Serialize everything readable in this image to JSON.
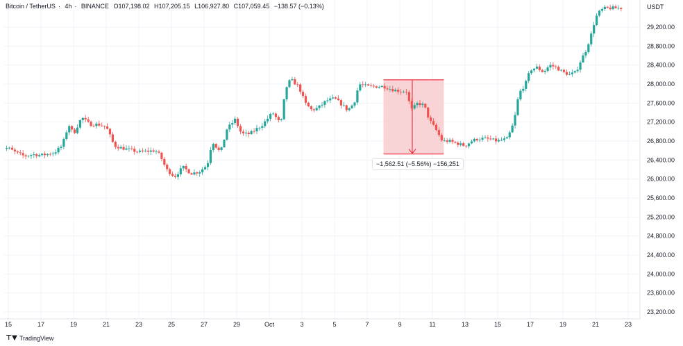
{
  "header": {
    "symbol": "Bitcoin / TetherUS",
    "interval": "4h",
    "exchange": "BINANCE",
    "open": "O107,198.02",
    "high": "H107,205.15",
    "low": "L106,927.80",
    "close": "C107,059.45",
    "change": "−138.57 (−0.13%)"
  },
  "unit_label": "USDT",
  "brand_label": "TradingView",
  "measure_label": "−1,562.51 (−5.56%) −156,251",
  "colors": {
    "up": "#26a69a",
    "down": "#ef5350",
    "grid": "#f0f3fa",
    "axis_text": "#131722",
    "measure_fill": "#f7c5c8",
    "measure_line": "#f23645"
  },
  "chart_data": {
    "type": "candlestick",
    "title": "Bitcoin / TetherUS · 4h · BINANCE",
    "ylabel": "USDT",
    "ylim": [
      23000,
      29600
    ],
    "xlim": [
      15,
      53
    ],
    "y_ticks": [
      "29,200.00",
      "28,800.00",
      "28,400.00",
      "28,000.00",
      "27,600.00",
      "27,200.00",
      "26,800.00",
      "26,400.00",
      "26,000.00",
      "25,600.00",
      "25,200.00",
      "24,800.00",
      "24,400.00",
      "24,000.00",
      "23,600.00",
      "23,200.00"
    ],
    "x_ticks": [
      {
        "label": "15",
        "x": 15
      },
      {
        "label": "17",
        "x": 17
      },
      {
        "label": "19",
        "x": 19
      },
      {
        "label": "21",
        "x": 21
      },
      {
        "label": "23",
        "x": 23
      },
      {
        "label": "25",
        "x": 25
      },
      {
        "label": "27",
        "x": 27
      },
      {
        "label": "29",
        "x": 29
      },
      {
        "label": "Oct",
        "x": 31
      },
      {
        "label": "3",
        "x": 33
      },
      {
        "label": "5",
        "x": 35
      },
      {
        "label": "7",
        "x": 37
      },
      {
        "label": "9",
        "x": 39
      },
      {
        "label": "11",
        "x": 41
      },
      {
        "label": "13",
        "x": 43
      },
      {
        "label": "15",
        "x": 45
      },
      {
        "label": "17",
        "x": 47
      },
      {
        "label": "19",
        "x": 49
      },
      {
        "label": "21",
        "x": 51
      },
      {
        "label": "23",
        "x": 53
      }
    ],
    "price_anchors": [
      [
        15.0,
        26650
      ],
      [
        15.5,
        26550
      ],
      [
        16.0,
        26480
      ],
      [
        16.5,
        26520
      ],
      [
        17.0,
        26500
      ],
      [
        17.8,
        26550
      ],
      [
        18.3,
        26700
      ],
      [
        18.7,
        27150
      ],
      [
        19.0,
        26950
      ],
      [
        19.5,
        27300
      ],
      [
        20.0,
        27150
      ],
      [
        20.5,
        27150
      ],
      [
        21.0,
        27100
      ],
      [
        21.5,
        26700
      ],
      [
        22.0,
        26650
      ],
      [
        23.0,
        26570
      ],
      [
        24.0,
        26600
      ],
      [
        24.3,
        26500
      ],
      [
        24.7,
        26200
      ],
      [
        25.2,
        26050
      ],
      [
        25.7,
        26250
      ],
      [
        26.2,
        26120
      ],
      [
        26.7,
        26150
      ],
      [
        27.2,
        26300
      ],
      [
        27.5,
        26800
      ],
      [
        28.0,
        26550
      ],
      [
        28.4,
        27050
      ],
      [
        28.9,
        27250
      ],
      [
        29.3,
        26950
      ],
      [
        29.8,
        26950
      ],
      [
        30.2,
        27050
      ],
      [
        30.6,
        27150
      ],
      [
        31.2,
        27400
      ],
      [
        31.7,
        27150
      ],
      [
        32.0,
        27900
      ],
      [
        32.3,
        28100
      ],
      [
        32.8,
        27950
      ],
      [
        33.2,
        27600
      ],
      [
        33.6,
        27450
      ],
      [
        34.0,
        27500
      ],
      [
        34.5,
        27650
      ],
      [
        35.0,
        27700
      ],
      [
        35.5,
        27550
      ],
      [
        35.8,
        27450
      ],
      [
        36.2,
        27600
      ],
      [
        36.5,
        28000
      ],
      [
        37.0,
        27950
      ],
      [
        37.5,
        27950
      ],
      [
        38.0,
        27950
      ],
      [
        38.6,
        27880
      ],
      [
        39.0,
        27850
      ],
      [
        39.4,
        27850
      ],
      [
        39.7,
        27450
      ],
      [
        40.1,
        27600
      ],
      [
        40.5,
        27550
      ],
      [
        40.8,
        27250
      ],
      [
        41.2,
        27050
      ],
      [
        41.6,
        26800
      ],
      [
        42.0,
        26800
      ],
      [
        42.5,
        26750
      ],
      [
        43.0,
        26700
      ],
      [
        43.4,
        26800
      ],
      [
        43.8,
        26850
      ],
      [
        44.3,
        26850
      ],
      [
        45.0,
        26800
      ],
      [
        45.6,
        26850
      ],
      [
        46.0,
        27200
      ],
      [
        46.3,
        27800
      ],
      [
        46.7,
        28000
      ],
      [
        47.0,
        28300
      ],
      [
        47.4,
        28350
      ],
      [
        47.8,
        28250
      ],
      [
        48.2,
        28400
      ],
      [
        48.6,
        28350
      ],
      [
        49.0,
        28250
      ],
      [
        49.4,
        28200
      ],
      [
        49.8,
        28250
      ],
      [
        50.1,
        28500
      ],
      [
        50.4,
        28700
      ],
      [
        50.7,
        29000
      ],
      [
        51.0,
        29400
      ],
      [
        51.3,
        29550
      ],
      [
        51.6,
        29600
      ],
      [
        52.0,
        29600
      ],
      [
        52.5,
        29600
      ]
    ],
    "annotation": {
      "type": "price_range",
      "x_start": 38.0,
      "x_end": 41.7,
      "price_top": 28090,
      "price_bottom": 26527,
      "text": "−1,562.51 (−5.56%) −156,251"
    }
  }
}
